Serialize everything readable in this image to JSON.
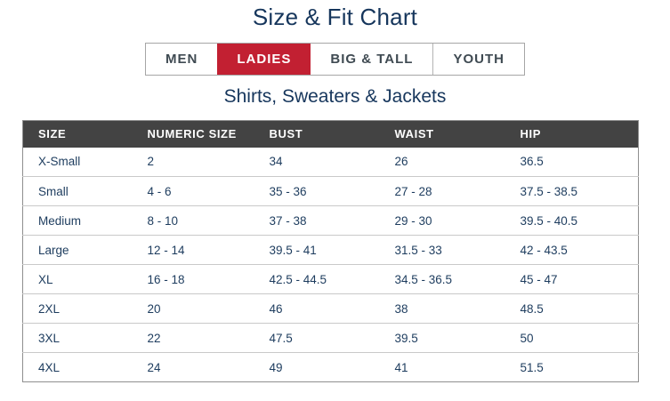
{
  "page": {
    "title": "Size & Fit Chart",
    "subtitle": "Shirts, Sweaters & Jackets"
  },
  "tabs": [
    {
      "label": "MEN",
      "active": false
    },
    {
      "label": "LADIES",
      "active": true
    },
    {
      "label": "BIG & TALL",
      "active": false
    },
    {
      "label": "YOUTH",
      "active": false
    }
  ],
  "colors": {
    "accent_red": "#c22032",
    "navy_text": "#16365c",
    "cell_text": "#1d3c5e",
    "table_header_bg": "#434343",
    "tab_text": "#3f4a52",
    "row_divider": "#c9c9c9",
    "table_border": "#8f8f8f"
  },
  "table": {
    "columns": [
      "SIZE",
      "NUMERIC SIZE",
      "BUST",
      "WAIST",
      "HIP"
    ],
    "rows": [
      [
        "X-Small",
        "2",
        "34",
        "26",
        "36.5"
      ],
      [
        "Small",
        "4 - 6",
        "35 - 36",
        "27 - 28",
        "37.5 - 38.5"
      ],
      [
        "Medium",
        "8 - 10",
        "37 - 38",
        "29 - 30",
        "39.5 - 40.5"
      ],
      [
        "Large",
        "12 - 14",
        "39.5 - 41",
        "31.5 - 33",
        "42 - 43.5"
      ],
      [
        "XL",
        "16 - 18",
        "42.5 - 44.5",
        "34.5 - 36.5",
        "45 - 47"
      ],
      [
        "2XL",
        "20",
        "46",
        "38",
        "48.5"
      ],
      [
        "3XL",
        "22",
        "47.5",
        "39.5",
        "50"
      ],
      [
        "4XL",
        "24",
        "49",
        "41",
        "51.5"
      ]
    ]
  }
}
